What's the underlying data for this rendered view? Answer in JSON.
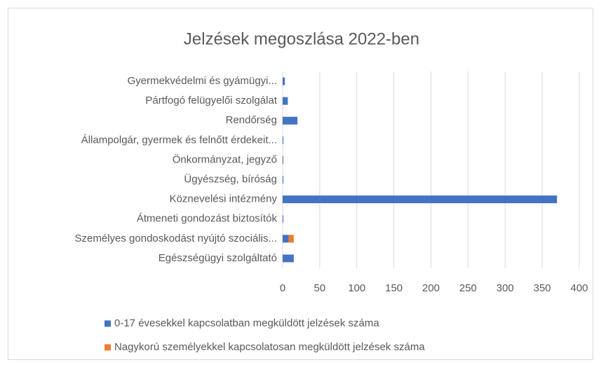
{
  "chart_data": {
    "type": "bar",
    "orientation": "horizontal",
    "stacked": true,
    "title": "Jelzések megoszlása 2022-ben",
    "categories": [
      "Gyermekvédelmi és gyámügyi...",
      "Pártfogó felügyelői szolgálat",
      "Rendőrség",
      "Állampolgár, gyermek és felnőtt érdekeit...",
      "Önkormányzat, jegyző",
      "Ügyészség, bíróság",
      "Köznevelési intézmény",
      "Átmeneti gondozást biztosítók",
      "Személyes gondoskodást nyújtó szociális...",
      "Egészségügyi szolgáltató"
    ],
    "series": [
      {
        "name": "0-17 évesekkel kapcsolatban megküldött jelzések száma",
        "color": "#4472c4",
        "values": [
          3,
          7,
          20,
          1,
          1,
          1,
          370,
          1,
          8,
          15
        ]
      },
      {
        "name": "Nagykorú személyekkel kapcsolatosan megküldött jelzések száma",
        "color": "#ed7d31",
        "values": [
          0,
          0,
          0,
          0,
          0,
          0,
          0,
          0,
          7,
          0
        ]
      }
    ],
    "xlim": [
      0,
      400
    ],
    "xticks": [
      0,
      50,
      100,
      150,
      200,
      250,
      300,
      350,
      400
    ],
    "grid": true,
    "legend": "bottom"
  }
}
